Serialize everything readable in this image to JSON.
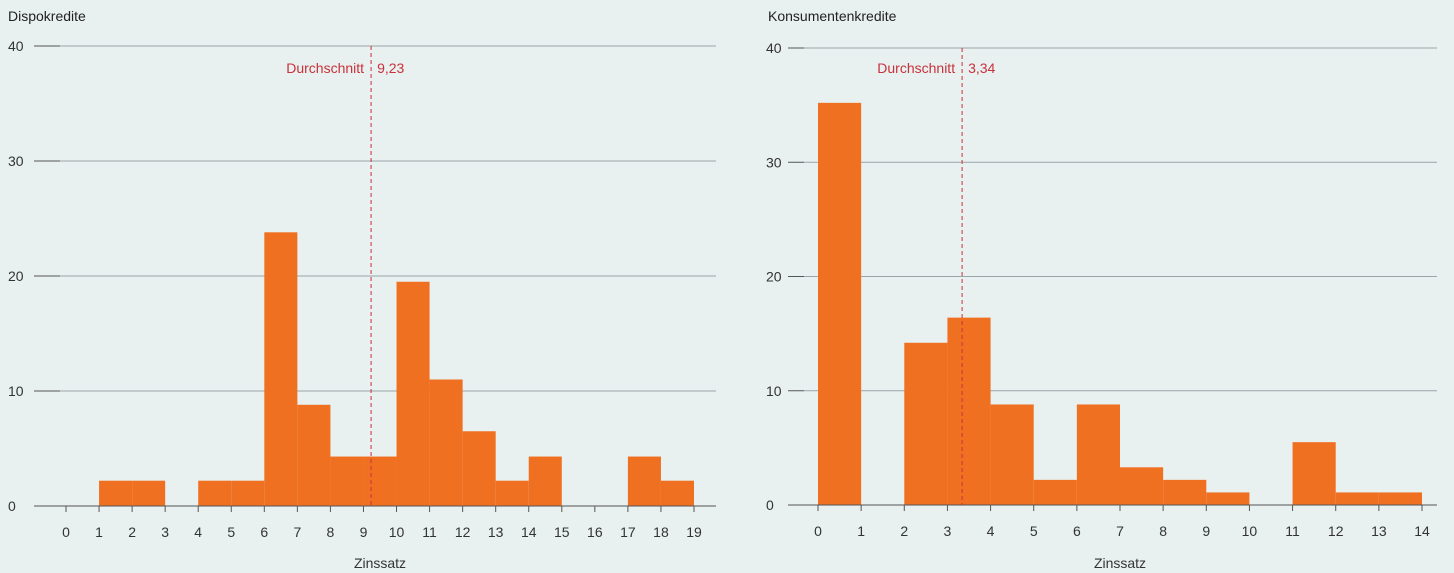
{
  "colors": {
    "background": "#e8f0f0",
    "bar": "#f07022",
    "average": "#c8323c",
    "grid": "#9aa6a8",
    "axis": "#555555"
  },
  "chart_data": [
    {
      "type": "bar",
      "title": "Dispokredite",
      "xlabel": "Zinssatz",
      "ylabel": "",
      "ylim": [
        0,
        40
      ],
      "yticks": [
        0,
        10,
        20,
        30,
        40
      ],
      "xlim": [
        0,
        19
      ],
      "xticks": [
        0,
        1,
        2,
        3,
        4,
        5,
        6,
        7,
        8,
        9,
        10,
        11,
        12,
        13,
        14,
        15,
        16,
        17,
        18,
        19
      ],
      "grid": true,
      "bins": [
        {
          "from": 1,
          "to": 2,
          "value": 2.2
        },
        {
          "from": 2,
          "to": 3,
          "value": 2.2
        },
        {
          "from": 4,
          "to": 5,
          "value": 2.2
        },
        {
          "from": 5,
          "to": 6,
          "value": 2.2
        },
        {
          "from": 6,
          "to": 7,
          "value": 23.8
        },
        {
          "from": 7,
          "to": 8,
          "value": 8.8
        },
        {
          "from": 8,
          "to": 9,
          "value": 4.3
        },
        {
          "from": 9,
          "to": 10,
          "value": 4.3
        },
        {
          "from": 10,
          "to": 11,
          "value": 19.5
        },
        {
          "from": 11,
          "to": 12,
          "value": 11
        },
        {
          "from": 12,
          "to": 13,
          "value": 6.5
        },
        {
          "from": 13,
          "to": 14,
          "value": 2.2
        },
        {
          "from": 14,
          "to": 15,
          "value": 4.3
        },
        {
          "from": 17,
          "to": 18,
          "value": 4.3
        },
        {
          "from": 18,
          "to": 19,
          "value": 2.2
        }
      ],
      "average": {
        "value": 9.23,
        "label": "Durchschnitt",
        "value_label": "9,23"
      }
    },
    {
      "type": "bar",
      "title": "Konsumentenkredite",
      "xlabel": "Zinssatz",
      "ylabel": "",
      "ylim": [
        0,
        40
      ],
      "yticks": [
        0,
        10,
        20,
        30,
        40
      ],
      "xlim": [
        0,
        14
      ],
      "xticks": [
        0,
        1,
        2,
        3,
        4,
        5,
        6,
        7,
        8,
        9,
        10,
        11,
        12,
        13,
        14
      ],
      "grid": true,
      "bins": [
        {
          "from": 0,
          "to": 1,
          "value": 35.2
        },
        {
          "from": 2,
          "to": 3,
          "value": 14.2
        },
        {
          "from": 3,
          "to": 4,
          "value": 16.4
        },
        {
          "from": 4,
          "to": 5,
          "value": 8.8
        },
        {
          "from": 5,
          "to": 6,
          "value": 2.2
        },
        {
          "from": 6,
          "to": 7,
          "value": 8.8
        },
        {
          "from": 7,
          "to": 8,
          "value": 3.3
        },
        {
          "from": 8,
          "to": 9,
          "value": 2.2
        },
        {
          "from": 9,
          "to": 10,
          "value": 1.1
        },
        {
          "from": 11,
          "to": 12,
          "value": 5.5
        },
        {
          "from": 12,
          "to": 13,
          "value": 1.1
        },
        {
          "from": 13,
          "to": 14,
          "value": 1.1
        }
      ],
      "average": {
        "value": 3.34,
        "label": "Durchschnitt",
        "value_label": "3,34"
      }
    }
  ]
}
